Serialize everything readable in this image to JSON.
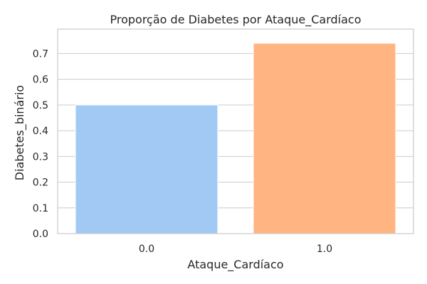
{
  "chart_data": {
    "type": "bar",
    "title": "Proporção de Diabetes por Ataque_Cardíaco",
    "xlabel": "Ataque_Cardíaco",
    "ylabel": "Diabetes_binário",
    "categories": [
      "0.0",
      "1.0"
    ],
    "values": [
      0.5,
      0.74
    ],
    "colors": [
      "#a1c9f4",
      "#ffb482"
    ],
    "ylim": [
      0,
      0.795
    ],
    "yticks": [
      0.0,
      0.1,
      0.2,
      0.3,
      0.4,
      0.5,
      0.6,
      0.7
    ],
    "ytick_labels": [
      "0.0",
      "0.1",
      "0.2",
      "0.3",
      "0.4",
      "0.5",
      "0.6",
      "0.7"
    ],
    "grid": true,
    "grid_color": "#cccccc",
    "background": "#ffffff"
  }
}
